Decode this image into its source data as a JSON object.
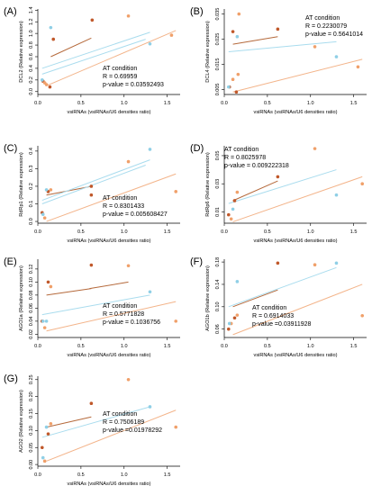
{
  "colors": {
    "pt_dark": "#c0582a",
    "pt_orange": "#f0a06a",
    "pt_blue": "#8fcfe6",
    "line_dark": "#b5693b",
    "line_light": "#f3b48a",
    "line_blue": "#a9dcee",
    "axis": "#000000"
  },
  "chart_data": [
    {
      "type": "scatter",
      "panel": "(A)",
      "ylabel": "DCL2 (Relative expression)",
      "xlabel": "vsiRNAs (vsiRNAs/U6 densities ratio)",
      "xlim": [
        0,
        1.65
      ],
      "ylim": [
        -0.05,
        1.42
      ],
      "xticks": [
        "0.0",
        "0.5",
        "1.0",
        "1.5"
      ],
      "xtick_values": [
        0,
        0.5,
        1.0,
        1.5
      ],
      "yticks": [
        "0.0",
        "0.2",
        "0.4",
        "0.6",
        "0.8",
        "1.0",
        "1.2",
        "1.4"
      ],
      "ytick_values": [
        0,
        0.2,
        0.4,
        0.6,
        0.8,
        1.0,
        1.2,
        1.4
      ],
      "annotation": [
        "AT condition",
        "R = 0.69959",
        "p-value = 0.03592493"
      ],
      "points": [
        {
          "x": 0.06,
          "y": 0.18,
          "c": "pt_dark"
        },
        {
          "x": 0.1,
          "y": 0.12,
          "c": "pt_orange"
        },
        {
          "x": 0.14,
          "y": 0.08,
          "c": "pt_dark"
        },
        {
          "x": 0.18,
          "y": 0.9,
          "c": "pt_dark"
        },
        {
          "x": 0.63,
          "y": 1.23,
          "c": "pt_dark"
        },
        {
          "x": 1.05,
          "y": 1.3,
          "c": "pt_orange"
        },
        {
          "x": 1.55,
          "y": 0.97,
          "c": "pt_orange"
        },
        {
          "x": 0.15,
          "y": 1.1,
          "c": "pt_blue"
        },
        {
          "x": 0.05,
          "y": 0.2,
          "c": "pt_blue"
        },
        {
          "x": 1.3,
          "y": 0.82,
          "c": "pt_blue"
        },
        {
          "x": 0.08,
          "y": 0.15,
          "c": "pt_orange"
        }
      ],
      "lines": [
        {
          "x": [
            0.15,
            0.62
          ],
          "y": [
            0.6,
            0.92
          ],
          "c": "line_dark"
        },
        {
          "x": [
            0.1,
            1.6
          ],
          "y": [
            0.1,
            1.05
          ],
          "c": "line_light"
        },
        {
          "x": [
            0.05,
            1.3
          ],
          "y": [
            0.4,
            1.02
          ],
          "c": "line_blue"
        },
        {
          "x": [
            0.05,
            1.25
          ],
          "y": [
            0.3,
            0.9
          ],
          "c": "line_blue"
        }
      ]
    },
    {
      "type": "scatter",
      "panel": "(B)",
      "ylabel": "DCL4 (Relative expression)",
      "xlabel": "vsiRNAs (vsiRNAs/U6 densities ratio)",
      "xlim": [
        0,
        1.65
      ],
      "ylim": [
        0.003,
        0.037
      ],
      "xticks": [
        "0.0",
        "0.5",
        "1.0",
        "1.5"
      ],
      "xtick_values": [
        0,
        0.5,
        1.0,
        1.5
      ],
      "yticks": [
        "0.005",
        "0.015",
        "0.025",
        "0.035"
      ],
      "ytick_values": [
        0.005,
        0.015,
        0.025,
        0.035
      ],
      "annotation": [
        "AT condition",
        "R = 0.2230079",
        "p-value = 0.5641014"
      ],
      "points": [
        {
          "x": 0.06,
          "y": 0.006,
          "c": "pt_dark"
        },
        {
          "x": 0.1,
          "y": 0.009,
          "c": "pt_orange"
        },
        {
          "x": 0.14,
          "y": 0.004,
          "c": "pt_dark"
        },
        {
          "x": 0.16,
          "y": 0.011,
          "c": "pt_orange"
        },
        {
          "x": 0.1,
          "y": 0.028,
          "c": "pt_dark"
        },
        {
          "x": 0.17,
          "y": 0.035,
          "c": "pt_orange"
        },
        {
          "x": 0.62,
          "y": 0.029,
          "c": "pt_dark"
        },
        {
          "x": 1.05,
          "y": 0.022,
          "c": "pt_orange"
        },
        {
          "x": 1.55,
          "y": 0.014,
          "c": "pt_orange"
        },
        {
          "x": 1.3,
          "y": 0.018,
          "c": "pt_blue"
        },
        {
          "x": 0.15,
          "y": 0.026,
          "c": "pt_blue"
        },
        {
          "x": 0.05,
          "y": 0.006,
          "c": "pt_blue"
        }
      ],
      "lines": [
        {
          "x": [
            0.1,
            0.62
          ],
          "y": [
            0.023,
            0.026
          ],
          "c": "line_dark"
        },
        {
          "x": [
            0.1,
            1.6
          ],
          "y": [
            0.004,
            0.017
          ],
          "c": "line_light"
        },
        {
          "x": [
            0.05,
            1.3
          ],
          "y": [
            0.02,
            0.024
          ],
          "c": "line_blue"
        }
      ]
    },
    {
      "type": "scatter",
      "panel": "(C)",
      "ylabel": "RdRp1 (Relative expression)",
      "xlabel": "vsiRNAs (vsiRNAs/U6 densities ratio)",
      "xlim": [
        0,
        1.65
      ],
      "ylim": [
        -0.01,
        0.43
      ],
      "xticks": [
        "0.0",
        "0.5",
        "1.0",
        "1.5"
      ],
      "xtick_values": [
        0,
        0.5,
        1.0,
        1.5
      ],
      "yticks": [
        "0.0",
        "0.1",
        "0.2",
        "0.3",
        "0.4"
      ],
      "ytick_values": [
        0,
        0.1,
        0.2,
        0.3,
        0.4
      ],
      "annotation": [
        "AT condition",
        "R = 0.8301433",
        "p-value = 0.005608427"
      ],
      "points": [
        {
          "x": 0.05,
          "y": 0.05,
          "c": "pt_dark"
        },
        {
          "x": 0.08,
          "y": 0.02,
          "c": "pt_orange"
        },
        {
          "x": 0.12,
          "y": 0.17,
          "c": "pt_dark"
        },
        {
          "x": 0.15,
          "y": 0.18,
          "c": "pt_orange"
        },
        {
          "x": 0.62,
          "y": 0.15,
          "c": "pt_dark"
        },
        {
          "x": 0.62,
          "y": 0.2,
          "c": "pt_dark"
        },
        {
          "x": 1.05,
          "y": 0.34,
          "c": "pt_orange"
        },
        {
          "x": 1.6,
          "y": 0.17,
          "c": "pt_orange"
        },
        {
          "x": 1.3,
          "y": 0.41,
          "c": "pt_blue"
        },
        {
          "x": 0.1,
          "y": 0.18,
          "c": "pt_blue"
        },
        {
          "x": 0.06,
          "y": 0.04,
          "c": "pt_blue"
        }
      ],
      "lines": [
        {
          "x": [
            0.1,
            0.62
          ],
          "y": [
            0.15,
            0.2
          ],
          "c": "line_dark"
        },
        {
          "x": [
            0.1,
            1.6
          ],
          "y": [
            0.0,
            0.27
          ],
          "c": "line_light"
        },
        {
          "x": [
            0.05,
            1.3
          ],
          "y": [
            0.12,
            0.35
          ],
          "c": "line_blue"
        },
        {
          "x": [
            0.05,
            1.25
          ],
          "y": [
            0.1,
            0.32
          ],
          "c": "line_blue"
        }
      ]
    },
    {
      "type": "scatter",
      "panel": "(D)",
      "ylabel": "RdRp6 (Relative expression)",
      "xlabel": "vsiRNAs (vsiRNAs/U6 densities ratio)",
      "xlim": [
        0,
        1.65
      ],
      "ylim": [
        0.002,
        0.057
      ],
      "xticks": [
        "0.0",
        "0.5",
        "1.0",
        "1.5"
      ],
      "xtick_values": [
        0,
        0.5,
        1.0,
        1.5
      ],
      "yticks": [
        "0.01",
        "0.03",
        "0.05"
      ],
      "ytick_values": [
        0.01,
        0.03,
        0.05
      ],
      "annotation": [
        "AT condition",
        "R = 0.8025978",
        "p-value = 0.009222318"
      ],
      "points": [
        {
          "x": 0.05,
          "y": 0.008,
          "c": "pt_dark"
        },
        {
          "x": 0.08,
          "y": 0.005,
          "c": "pt_orange"
        },
        {
          "x": 0.12,
          "y": 0.018,
          "c": "pt_dark"
        },
        {
          "x": 0.15,
          "y": 0.024,
          "c": "pt_orange"
        },
        {
          "x": 0.62,
          "y": 0.035,
          "c": "pt_dark"
        },
        {
          "x": 1.05,
          "y": 0.055,
          "c": "pt_orange"
        },
        {
          "x": 1.6,
          "y": 0.03,
          "c": "pt_orange"
        },
        {
          "x": 1.3,
          "y": 0.022,
          "c": "pt_blue"
        },
        {
          "x": 0.1,
          "y": 0.012,
          "c": "pt_blue"
        }
      ],
      "lines": [
        {
          "x": [
            0.1,
            0.62
          ],
          "y": [
            0.018,
            0.032
          ],
          "c": "line_dark"
        },
        {
          "x": [
            0.1,
            1.6
          ],
          "y": [
            0.003,
            0.035
          ],
          "c": "line_light"
        },
        {
          "x": [
            0.05,
            1.3
          ],
          "y": [
            0.016,
            0.04
          ],
          "c": "line_blue"
        }
      ]
    },
    {
      "type": "scatter",
      "panel": "(E)",
      "ylabel": "AGO1a (Relative expression)",
      "xlabel": "vsiRNAs (vsiRNAs/U6 densities ratio)",
      "xlim": [
        0,
        1.65
      ],
      "ylim": [
        0.015,
        0.135
      ],
      "xticks": [
        "0.0",
        "0.5",
        "1.0",
        "1.5"
      ],
      "xtick_values": [
        0,
        0.5,
        1.0,
        1.5
      ],
      "yticks": [
        "0.02",
        "0.04",
        "0.06",
        "0.08",
        "0.10",
        "0.12"
      ],
      "ytick_values": [
        0.02,
        0.04,
        0.06,
        0.08,
        0.1,
        0.12
      ],
      "annotation": [
        "AT condition",
        "R = 0.5771828",
        "p-value = 0.1036756"
      ],
      "points": [
        {
          "x": 0.05,
          "y": 0.04,
          "c": "pt_dark"
        },
        {
          "x": 0.08,
          "y": 0.03,
          "c": "pt_orange"
        },
        {
          "x": 0.12,
          "y": 0.1,
          "c": "pt_dark"
        },
        {
          "x": 0.15,
          "y": 0.093,
          "c": "pt_orange"
        },
        {
          "x": 0.62,
          "y": 0.126,
          "c": "pt_dark"
        },
        {
          "x": 1.05,
          "y": 0.125,
          "c": "pt_orange"
        },
        {
          "x": 1.6,
          "y": 0.04,
          "c": "pt_orange"
        },
        {
          "x": 1.3,
          "y": 0.085,
          "c": "pt_blue"
        },
        {
          "x": 0.1,
          "y": 0.04,
          "c": "pt_blue"
        },
        {
          "x": 0.06,
          "y": 0.04,
          "c": "pt_blue"
        }
      ],
      "lines": [
        {
          "x": [
            0.1,
            0.62
          ],
          "y": [
            0.08,
            0.09
          ],
          "c": "line_dark"
        },
        {
          "x": [
            0.1,
            1.6
          ],
          "y": [
            0.025,
            0.07
          ],
          "c": "line_light"
        },
        {
          "x": [
            0.05,
            1.3
          ],
          "y": [
            0.05,
            0.08
          ],
          "c": "line_blue"
        },
        {
          "x": [
            0.6,
            1.05
          ],
          "y": [
            0.09,
            0.1
          ],
          "c": "line_dark"
        }
      ]
    },
    {
      "type": "scatter",
      "panel": "(F)",
      "ylabel": "AGO1b (Relative expression)",
      "xlabel": "vsiRNAs (vsiRNAs/U6 densities ratio)",
      "xlim": [
        0,
        1.65
      ],
      "ylim": [
        0.045,
        0.185
      ],
      "xticks": [
        "0.0",
        "0.5",
        "1.0",
        "1.5"
      ],
      "xtick_values": [
        0,
        0.5,
        1.0,
        1.5
      ],
      "yticks": [
        "0.06",
        "0.10",
        "0.14",
        "0.18"
      ],
      "ytick_values": [
        0.06,
        0.1,
        0.14,
        0.18
      ],
      "annotation": [
        "AT condition",
        "R = 0.6914033",
        "p-value =0.03911928"
      ],
      "points": [
        {
          "x": 0.05,
          "y": 0.06,
          "c": "pt_dark"
        },
        {
          "x": 0.08,
          "y": 0.07,
          "c": "pt_orange"
        },
        {
          "x": 0.12,
          "y": 0.08,
          "c": "pt_dark"
        },
        {
          "x": 0.15,
          "y": 0.085,
          "c": "pt_orange"
        },
        {
          "x": 0.62,
          "y": 0.178,
          "c": "pt_dark"
        },
        {
          "x": 1.05,
          "y": 0.175,
          "c": "pt_orange"
        },
        {
          "x": 1.6,
          "y": 0.084,
          "c": "pt_orange"
        },
        {
          "x": 1.3,
          "y": 0.178,
          "c": "pt_blue"
        },
        {
          "x": 0.15,
          "y": 0.145,
          "c": "pt_blue"
        },
        {
          "x": 0.06,
          "y": 0.07,
          "c": "pt_blue"
        }
      ],
      "lines": [
        {
          "x": [
            0.1,
            0.62
          ],
          "y": [
            0.1,
            0.13
          ],
          "c": "line_dark"
        },
        {
          "x": [
            0.1,
            1.6
          ],
          "y": [
            0.05,
            0.14
          ],
          "c": "line_light"
        },
        {
          "x": [
            0.05,
            1.3
          ],
          "y": [
            0.1,
            0.17
          ],
          "c": "line_blue"
        }
      ]
    },
    {
      "type": "scatter",
      "panel": "(G)",
      "ylabel": "AGO2 (Relative expression)",
      "xlabel": "vsiRNAs (vsiRNAs/U6 densities ratio)",
      "xlim": [
        0,
        1.65
      ],
      "ylim": [
        -0.005,
        0.26
      ],
      "xticks": [
        "0.0",
        "0.5",
        "1.0",
        "1.5"
      ],
      "xtick_values": [
        0,
        0.5,
        1.0,
        1.5
      ],
      "yticks": [
        "0.00",
        "0.05",
        "0.10",
        "0.15",
        "0.20",
        "0.25"
      ],
      "ytick_values": [
        0,
        0.05,
        0.1,
        0.15,
        0.2,
        0.25
      ],
      "annotation": [
        "AT condition",
        "R = 0.7506189",
        "p-value =0.01978292"
      ],
      "points": [
        {
          "x": 0.05,
          "y": 0.05,
          "c": "pt_dark"
        },
        {
          "x": 0.08,
          "y": 0.01,
          "c": "pt_orange"
        },
        {
          "x": 0.12,
          "y": 0.09,
          "c": "pt_dark"
        },
        {
          "x": 0.15,
          "y": 0.12,
          "c": "pt_orange"
        },
        {
          "x": 0.62,
          "y": 0.18,
          "c": "pt_dark"
        },
        {
          "x": 1.05,
          "y": 0.25,
          "c": "pt_orange"
        },
        {
          "x": 1.6,
          "y": 0.11,
          "c": "pt_orange"
        },
        {
          "x": 1.3,
          "y": 0.17,
          "c": "pt_blue"
        },
        {
          "x": 0.1,
          "y": 0.11,
          "c": "pt_blue"
        },
        {
          "x": 0.06,
          "y": 0.02,
          "c": "pt_blue"
        }
      ],
      "lines": [
        {
          "x": [
            0.1,
            0.62
          ],
          "y": [
            0.11,
            0.14
          ],
          "c": "line_dark"
        },
        {
          "x": [
            0.1,
            1.6
          ],
          "y": [
            0.01,
            0.16
          ],
          "c": "line_light"
        },
        {
          "x": [
            0.05,
            1.3
          ],
          "y": [
            0.08,
            0.17
          ],
          "c": "line_blue"
        }
      ]
    }
  ]
}
